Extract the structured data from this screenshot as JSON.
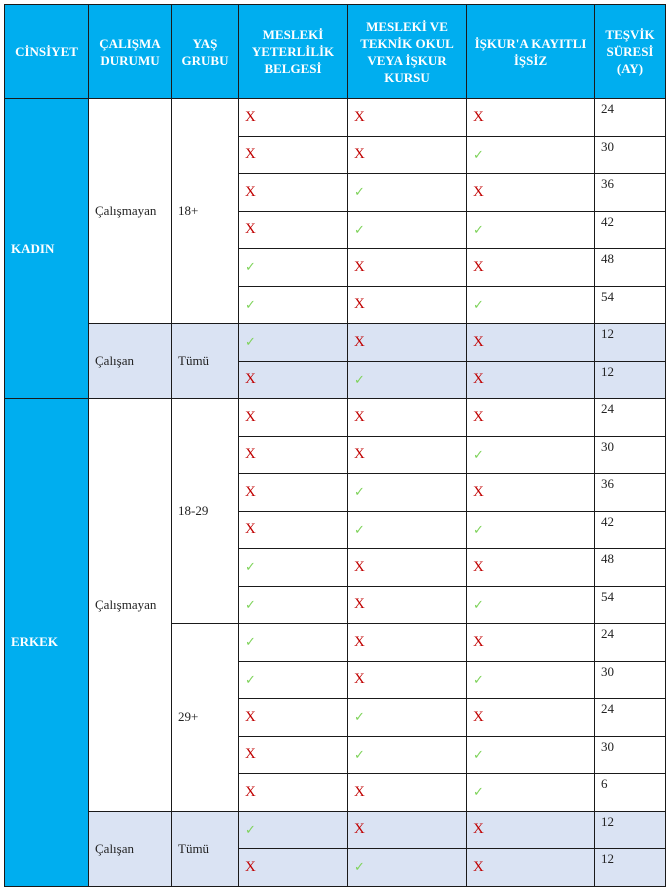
{
  "headers": [
    "CİNSİYET",
    "ÇALIŞMA DURUMU",
    "YAŞ GRUBU",
    "MESLEKİ YETERLİLİK BELGESİ",
    "MESLEKİ VE TEKNİK OKUL VEYA İŞKUR KURSU",
    "İŞKUR'A KAYITLI İŞSİZ",
    "TEŞVİK SÜRESİ (AY)"
  ],
  "colors": {
    "header": "#00aeef",
    "shaded": "#dae3f3",
    "cross": "#c00000",
    "check": "#7ed35a"
  },
  "groups": [
    {
      "gender": "KADIN",
      "statuses": [
        {
          "status": "Çalışmayan",
          "shaded": false,
          "ages": [
            {
              "age": "18+",
              "rows": [
                [
                  "X",
                  "X",
                  "X",
                  "24"
                ],
                [
                  "X",
                  "X",
                  "✓",
                  "30"
                ],
                [
                  "X",
                  "✓",
                  "X",
                  "36"
                ],
                [
                  "X",
                  "✓",
                  "✓",
                  "42"
                ],
                [
                  "✓",
                  "X",
                  "X",
                  "48"
                ],
                [
                  "✓",
                  "X",
                  "✓",
                  "54"
                ]
              ]
            }
          ]
        },
        {
          "status": "Çalışan",
          "shaded": true,
          "ages": [
            {
              "age": "Tümü",
              "rows": [
                [
                  "✓",
                  "X",
                  "X",
                  "12"
                ],
                [
                  "X",
                  "✓",
                  "X",
                  "12"
                ]
              ]
            }
          ]
        }
      ]
    },
    {
      "gender": "ERKEK",
      "statuses": [
        {
          "status": "Çalışmayan",
          "shaded": false,
          "ages": [
            {
              "age": "18-29",
              "rows": [
                [
                  "X",
                  "X",
                  "X",
                  "24"
                ],
                [
                  "X",
                  "X",
                  "✓",
                  "30"
                ],
                [
                  "X",
                  "✓",
                  "X",
                  "36"
                ],
                [
                  "X",
                  "✓",
                  "✓",
                  "42"
                ],
                [
                  "✓",
                  "X",
                  "X",
                  "48"
                ],
                [
                  "✓",
                  "X",
                  "✓",
                  "54"
                ]
              ]
            },
            {
              "age": "29+",
              "rows": [
                [
                  "✓",
                  "X",
                  "X",
                  "24"
                ],
                [
                  "✓",
                  "X",
                  "✓",
                  "30"
                ],
                [
                  "X",
                  "✓",
                  "X",
                  "24"
                ],
                [
                  "X",
                  "✓",
                  "✓",
                  "30"
                ],
                [
                  "X",
                  "X",
                  "✓",
                  "6"
                ]
              ]
            }
          ]
        },
        {
          "status": "Çalışan",
          "shaded": true,
          "ages": [
            {
              "age": "Tümü",
              "rows": [
                [
                  "✓",
                  "X",
                  "X",
                  "12"
                ],
                [
                  "X",
                  "✓",
                  "X",
                  "12"
                ]
              ]
            }
          ]
        }
      ]
    }
  ]
}
